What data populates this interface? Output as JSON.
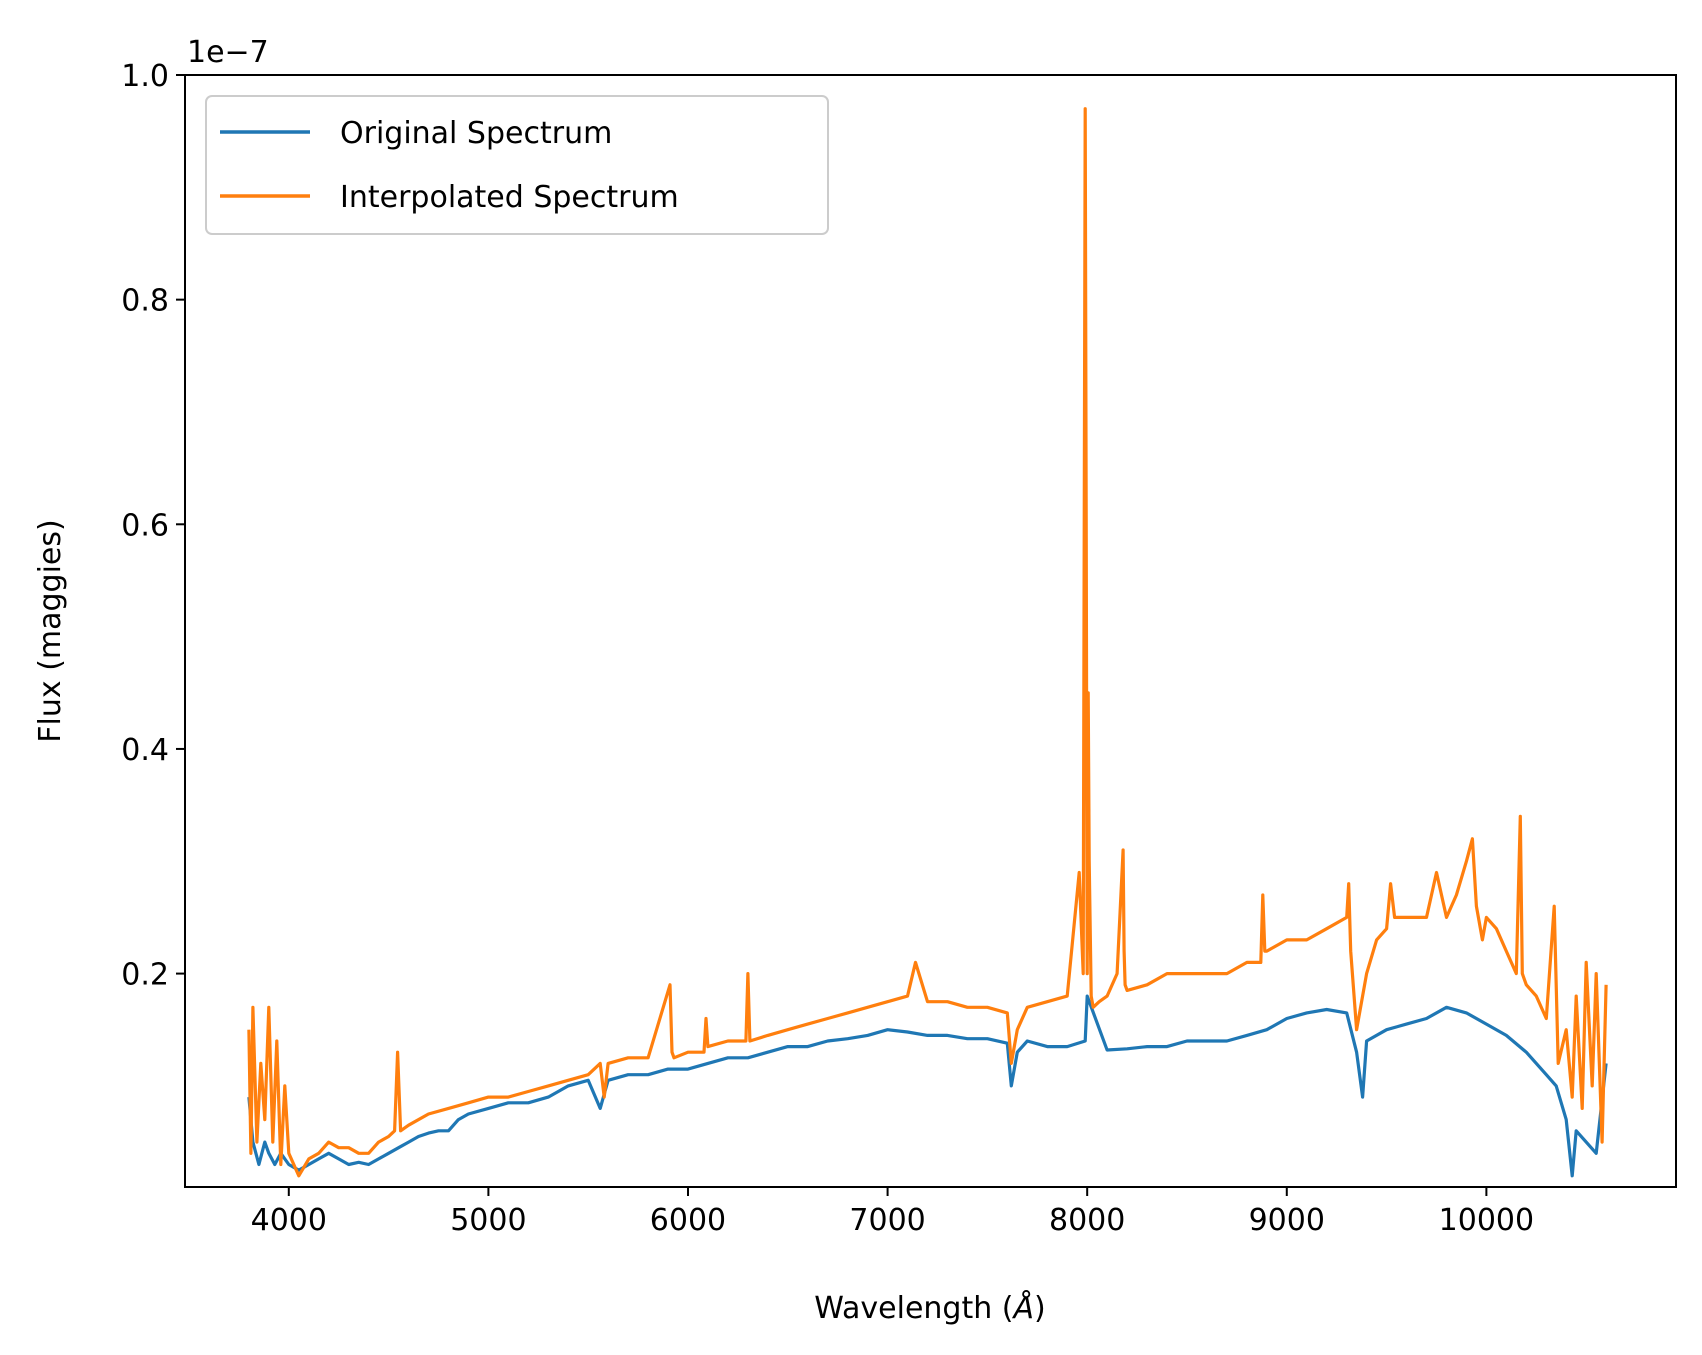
{
  "chart_data": {
    "type": "line",
    "title": "",
    "xlabel": "Wavelength (",
    "xlabel_symbol": "Å",
    "xlabel_suffix": ")",
    "ylabel": "Flux (maggies)",
    "y_offset_label": "1e−7",
    "xlim": [
      3480,
      10950
    ],
    "ylim": [
      0.01,
      1.0
    ],
    "x_ticks": [
      4000,
      5000,
      6000,
      7000,
      8000,
      9000,
      10000
    ],
    "x_tick_labels": [
      "4000",
      "5000",
      "6000",
      "7000",
      "8000",
      "9000",
      "10000"
    ],
    "y_ticks": [
      0.2,
      0.4,
      0.6,
      0.8,
      1.0
    ],
    "y_tick_labels": [
      "0.2",
      "0.4",
      "0.6",
      "0.8",
      "1.0"
    ],
    "grid": false,
    "legend_position": "upper-left",
    "series": [
      {
        "name": "Original Spectrum",
        "color": "#1f77b4",
        "x": [
          3800,
          3820,
          3850,
          3880,
          3900,
          3930,
          3960,
          4000,
          4050,
          4100,
          4150,
          4200,
          4250,
          4300,
          4350,
          4400,
          4450,
          4500,
          4550,
          4600,
          4650,
          4700,
          4750,
          4800,
          4850,
          4900,
          5000,
          5100,
          5200,
          5300,
          5400,
          5500,
          5560,
          5600,
          5700,
          5800,
          5900,
          6000,
          6100,
          6200,
          6300,
          6400,
          6500,
          6600,
          6700,
          6800,
          6900,
          7000,
          7100,
          7200,
          7300,
          7400,
          7500,
          7600,
          7620,
          7650,
          7700,
          7800,
          7900,
          7990,
          8000,
          8100,
          8200,
          8300,
          8400,
          8500,
          8600,
          8700,
          8800,
          8900,
          9000,
          9100,
          9200,
          9300,
          9350,
          9380,
          9400,
          9500,
          9600,
          9700,
          9800,
          9900,
          10000,
          10100,
          10200,
          10300,
          10350,
          10400,
          10430,
          10450,
          10500,
          10550,
          10600
        ],
        "y": [
          0.09,
          0.05,
          0.03,
          0.05,
          0.04,
          0.03,
          0.04,
          0.03,
          0.025,
          0.03,
          0.035,
          0.04,
          0.035,
          0.03,
          0.032,
          0.03,
          0.035,
          0.04,
          0.045,
          0.05,
          0.055,
          0.058,
          0.06,
          0.06,
          0.07,
          0.075,
          0.08,
          0.085,
          0.085,
          0.09,
          0.1,
          0.105,
          0.08,
          0.105,
          0.11,
          0.11,
          0.115,
          0.115,
          0.12,
          0.125,
          0.125,
          0.13,
          0.135,
          0.135,
          0.14,
          0.142,
          0.145,
          0.15,
          0.148,
          0.145,
          0.145,
          0.142,
          0.142,
          0.138,
          0.1,
          0.13,
          0.14,
          0.135,
          0.135,
          0.14,
          0.18,
          0.132,
          0.133,
          0.135,
          0.135,
          0.14,
          0.14,
          0.14,
          0.145,
          0.15,
          0.16,
          0.165,
          0.168,
          0.165,
          0.13,
          0.09,
          0.14,
          0.15,
          0.155,
          0.16,
          0.17,
          0.165,
          0.155,
          0.145,
          0.13,
          0.11,
          0.1,
          0.07,
          0.02,
          0.06,
          0.05,
          0.04,
          0.12
        ]
      },
      {
        "name": "Interpolated Spectrum",
        "color": "#ff7f0e",
        "x": [
          3800,
          3810,
          3820,
          3840,
          3860,
          3880,
          3900,
          3920,
          3940,
          3960,
          3980,
          4000,
          4050,
          4100,
          4150,
          4200,
          4250,
          4300,
          4350,
          4400,
          4450,
          4500,
          4530,
          4545,
          4560,
          4600,
          4700,
          4800,
          4900,
          5000,
          5100,
          5200,
          5300,
          5400,
          5500,
          5560,
          5580,
          5600,
          5700,
          5800,
          5910,
          5920,
          5930,
          6000,
          6080,
          6090,
          6100,
          6200,
          6290,
          6300,
          6310,
          6400,
          6500,
          6600,
          6700,
          6800,
          6900,
          7000,
          7100,
          7140,
          7200,
          7300,
          7400,
          7500,
          7600,
          7620,
          7650,
          7700,
          7800,
          7900,
          7960,
          7980,
          7990,
          7995,
          8000,
          8005,
          8010,
          8020,
          8030,
          8060,
          8100,
          8150,
          8180,
          8185,
          8190,
          8200,
          8300,
          8400,
          8500,
          8600,
          8700,
          8800,
          8870,
          8880,
          8890,
          8900,
          9000,
          9100,
          9200,
          9300,
          9310,
          9320,
          9350,
          9400,
          9450,
          9500,
          9520,
          9540,
          9600,
          9700,
          9750,
          9800,
          9850,
          9900,
          9930,
          9950,
          9980,
          10000,
          10050,
          10100,
          10150,
          10170,
          10180,
          10200,
          10250,
          10300,
          10340,
          10360,
          10400,
          10430,
          10450,
          10480,
          10500,
          10530,
          10550,
          10580,
          10600
        ],
        "y": [
          0.15,
          0.04,
          0.17,
          0.05,
          0.12,
          0.07,
          0.17,
          0.05,
          0.14,
          0.03,
          0.1,
          0.04,
          0.02,
          0.035,
          0.04,
          0.05,
          0.045,
          0.045,
          0.04,
          0.04,
          0.05,
          0.055,
          0.06,
          0.13,
          0.06,
          0.065,
          0.075,
          0.08,
          0.085,
          0.09,
          0.09,
          0.095,
          0.1,
          0.105,
          0.11,
          0.12,
          0.09,
          0.12,
          0.125,
          0.125,
          0.19,
          0.13,
          0.125,
          0.13,
          0.13,
          0.16,
          0.135,
          0.14,
          0.14,
          0.2,
          0.14,
          0.145,
          0.15,
          0.155,
          0.16,
          0.165,
          0.17,
          0.175,
          0.18,
          0.21,
          0.175,
          0.175,
          0.17,
          0.17,
          0.165,
          0.12,
          0.15,
          0.17,
          0.175,
          0.18,
          0.29,
          0.2,
          0.97,
          0.6,
          0.2,
          0.45,
          0.3,
          0.18,
          0.17,
          0.175,
          0.18,
          0.2,
          0.31,
          0.22,
          0.19,
          0.185,
          0.19,
          0.2,
          0.2,
          0.2,
          0.2,
          0.21,
          0.21,
          0.27,
          0.22,
          0.22,
          0.23,
          0.23,
          0.24,
          0.25,
          0.28,
          0.22,
          0.15,
          0.2,
          0.23,
          0.24,
          0.28,
          0.25,
          0.25,
          0.25,
          0.29,
          0.25,
          0.27,
          0.3,
          0.32,
          0.26,
          0.23,
          0.25,
          0.24,
          0.22,
          0.2,
          0.34,
          0.2,
          0.19,
          0.18,
          0.16,
          0.26,
          0.12,
          0.15,
          0.09,
          0.18,
          0.08,
          0.21,
          0.1,
          0.2,
          0.05,
          0.19
        ]
      }
    ]
  }
}
